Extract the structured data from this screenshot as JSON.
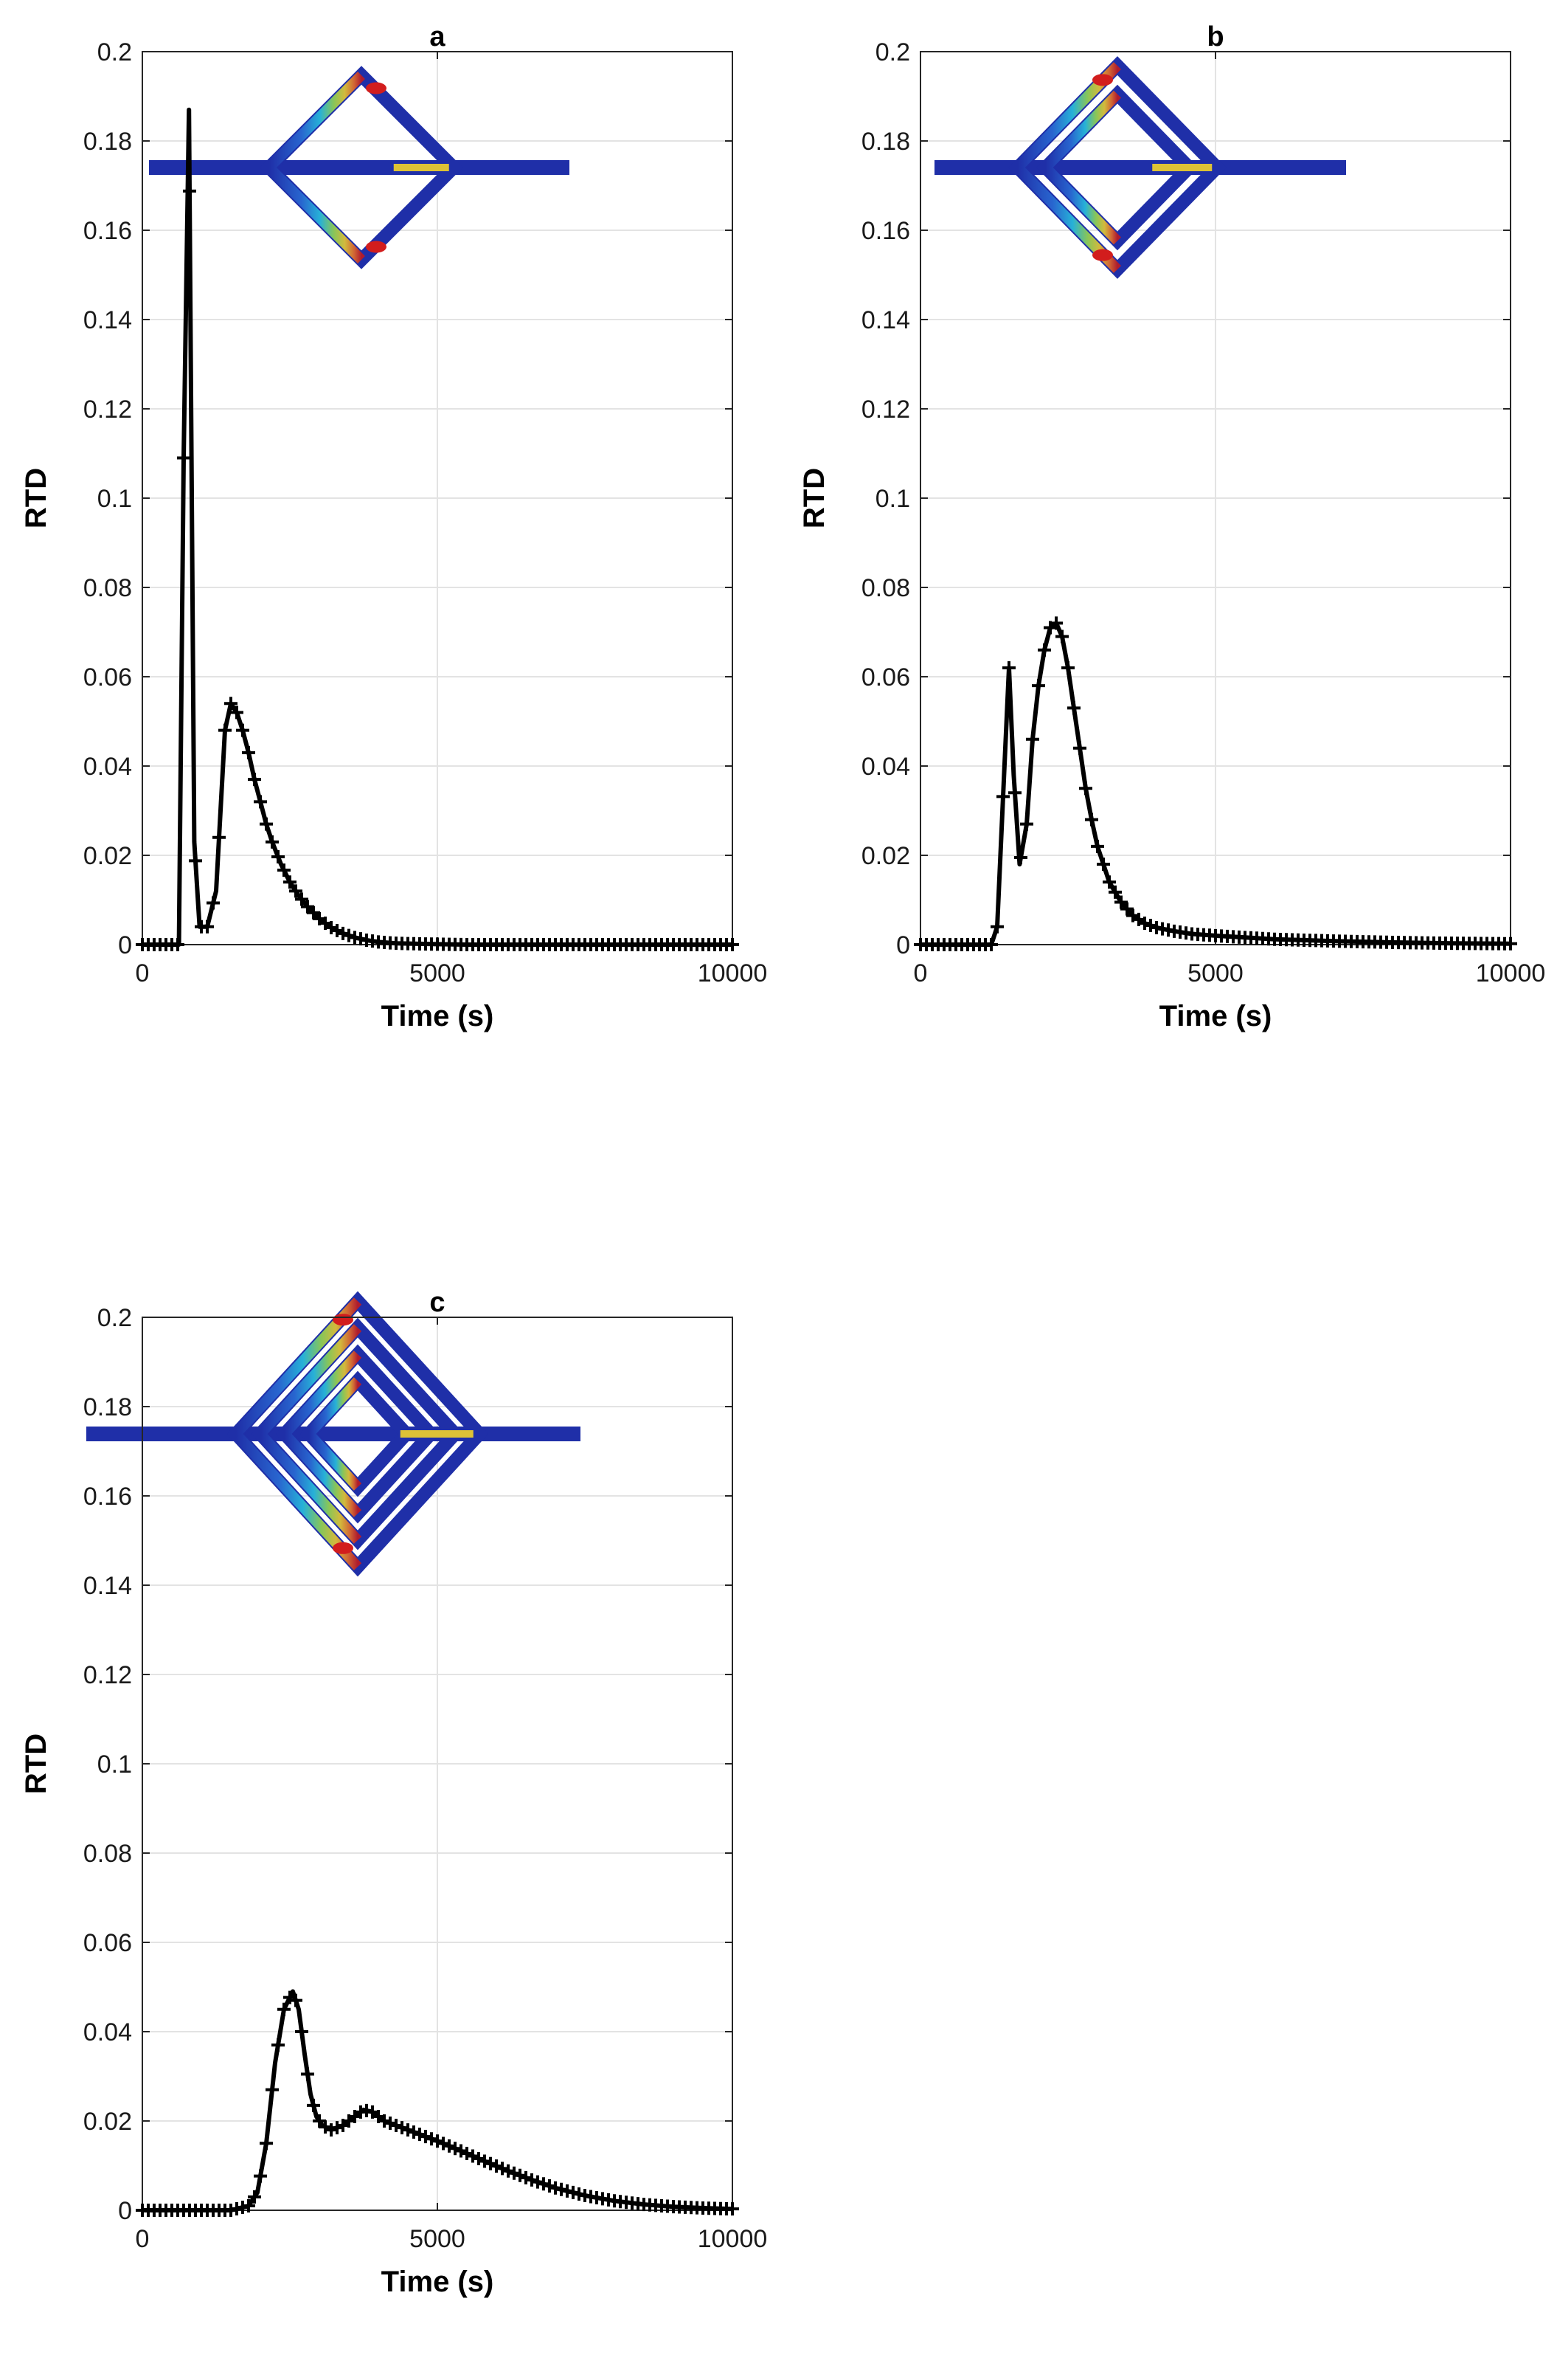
{
  "figure": {
    "panels": [
      {
        "letter": "a",
        "xlabel": "Time (s)",
        "ylabel": "RTD",
        "inset": "single"
      },
      {
        "letter": "b",
        "xlabel": "Time (s)",
        "ylabel": "RTD",
        "inset": "double"
      },
      {
        "letter": "c",
        "xlabel": "Time (s)",
        "ylabel": "RTD",
        "inset": "quad"
      }
    ],
    "xticks": [
      "0",
      "5000",
      "10000"
    ],
    "yticks": [
      "0",
      "0.02",
      "0.04",
      "0.06",
      "0.08",
      "0.1",
      "0.12",
      "0.14",
      "0.16",
      "0.18",
      "0.2"
    ]
  },
  "colors": {
    "line": "#000000",
    "grid": "#e3e3e3",
    "axis": "#262626",
    "channel": "#1f2fa8"
  },
  "chart_data": [
    {
      "type": "line",
      "title": "a",
      "xlabel": "Time (s)",
      "ylabel": "RTD",
      "xlim": [
        0,
        10000
      ],
      "ylim": [
        0,
        0.2
      ],
      "grid": true,
      "marker": "+",
      "series": [
        {
          "x": [
            0,
            200,
            400,
            550,
            620,
            700,
            790,
            880,
            970,
            1100,
            1250,
            1400,
            1500,
            1600,
            1700,
            1800,
            1900,
            2000,
            2100,
            2200,
            2350,
            2500,
            2650,
            2800,
            3000,
            3200,
            3400,
            3600,
            3800,
            4000,
            4300,
            4600,
            5000,
            5500,
            6000,
            7000,
            8000,
            9000,
            10000
          ],
          "y": [
            0,
            0,
            0,
            0,
            0,
            0.109,
            0.187,
            0.023,
            0.004,
            0.004,
            0.012,
            0.048,
            0.054,
            0.052,
            0.048,
            0.043,
            0.037,
            0.032,
            0.027,
            0.023,
            0.018,
            0.014,
            0.011,
            0.0085,
            0.0058,
            0.0038,
            0.0025,
            0.0016,
            0.001,
            0.0006,
            0.0003,
            0.0002,
            0.0001,
            0,
            0,
            0,
            0,
            0,
            0
          ]
        }
      ]
    },
    {
      "type": "line",
      "title": "b",
      "xlabel": "Time (s)",
      "ylabel": "RTD",
      "xlim": [
        0,
        10000
      ],
      "ylim": [
        0,
        0.2
      ],
      "grid": true,
      "marker": "+",
      "series": [
        {
          "x": [
            0,
            400,
            800,
            1200,
            1300,
            1420,
            1500,
            1580,
            1680,
            1800,
            1900,
            2000,
            2100,
            2200,
            2300,
            2400,
            2500,
            2600,
            2700,
            2800,
            2900,
            3000,
            3200,
            3400,
            3600,
            3800,
            4000,
            4300,
            4600,
            5000,
            5500,
            6000,
            7000,
            8000,
            9000,
            10000
          ],
          "y": [
            0,
            0,
            0,
            0,
            0.004,
            0.039,
            0.062,
            0.038,
            0.018,
            0.027,
            0.046,
            0.058,
            0.066,
            0.071,
            0.072,
            0.069,
            0.062,
            0.053,
            0.044,
            0.035,
            0.028,
            0.022,
            0.014,
            0.0095,
            0.0065,
            0.0048,
            0.0038,
            0.003,
            0.0024,
            0.002,
            0.0016,
            0.0012,
            0.0008,
            0.0005,
            0.0003,
            0.0002
          ]
        }
      ]
    },
    {
      "type": "line",
      "title": "c",
      "xlabel": "Time (s)",
      "ylabel": "RTD",
      "xlim": [
        0,
        10000
      ],
      "ylim": [
        0,
        0.2
      ],
      "grid": true,
      "marker": "+",
      "series": [
        {
          "x": [
            0,
            500,
            1000,
            1500,
            1800,
            1950,
            2100,
            2250,
            2400,
            2550,
            2650,
            2750,
            2850,
            2950,
            3050,
            3200,
            3400,
            3600,
            3750,
            3900,
            4100,
            4300,
            4600,
            5000,
            5400,
            5800,
            6200,
            6600,
            7000,
            7500,
            8000,
            8500,
            9000,
            9500,
            10000
          ],
          "y": [
            0,
            0,
            0,
            0,
            0.001,
            0.004,
            0.015,
            0.033,
            0.045,
            0.049,
            0.045,
            0.035,
            0.026,
            0.021,
            0.019,
            0.018,
            0.019,
            0.021,
            0.0225,
            0.022,
            0.02,
            0.019,
            0.0175,
            0.0155,
            0.0133,
            0.011,
            0.0088,
            0.0068,
            0.005,
            0.0033,
            0.0021,
            0.0013,
            0.0008,
            0.0005,
            0.0003
          ]
        }
      ]
    }
  ]
}
